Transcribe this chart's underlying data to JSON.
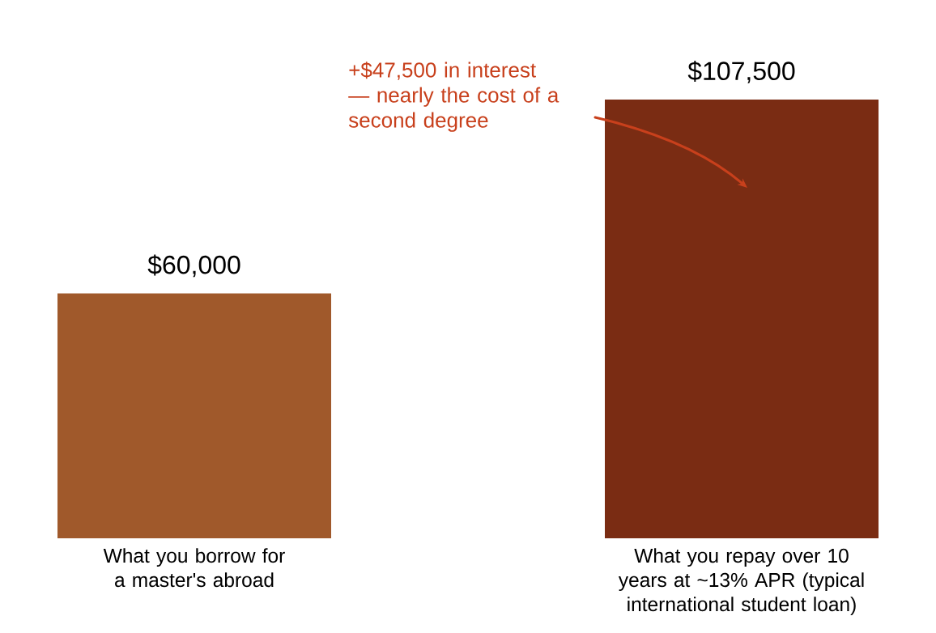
{
  "chart_data": {
    "type": "bar",
    "categories": [
      "What you borrow for a master's abroad",
      "What you repay over 10 years at ~13% APR (typical international student loan)"
    ],
    "values": [
      60000,
      107500
    ],
    "colors": [
      "#a0592b",
      "#7a2c13"
    ],
    "value_labels": [
      "$60,000",
      "$107,500"
    ],
    "annotations": [
      "+$47,500 in interest — nearly the cost of a second degree"
    ]
  }
}
